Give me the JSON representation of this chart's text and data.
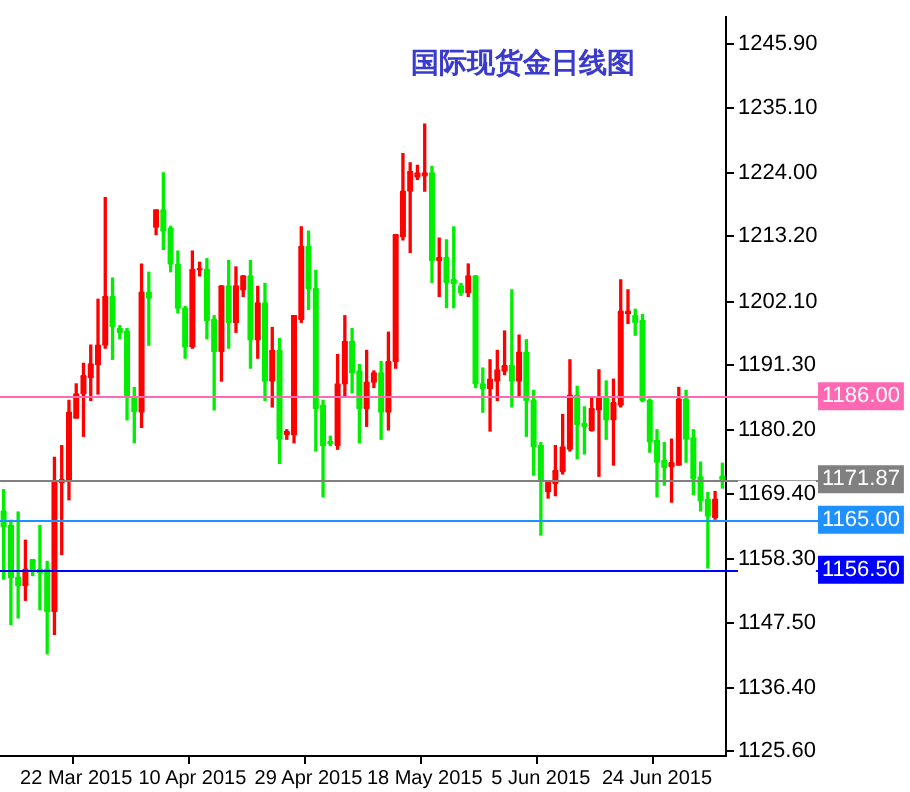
{
  "chart_data": {
    "type": "candlestick",
    "title": "国际现货金日线图",
    "categories": [
      null,
      null,
      null,
      null,
      null,
      null,
      null,
      null,
      null,
      null,
      "22 Mar 2015",
      null,
      null,
      null,
      null,
      null,
      null,
      null,
      null,
      null,
      null,
      null,
      null,
      null,
      null,
      null,
      "10 Apr 2015",
      null,
      null,
      null,
      null,
      null,
      null,
      null,
      null,
      null,
      null,
      null,
      null,
      null,
      null,
      null,
      "29 Apr 2015",
      null,
      null,
      null,
      null,
      null,
      null,
      null,
      null,
      null,
      null,
      null,
      null,
      null,
      null,
      null,
      "18 May 2015",
      null,
      null,
      null,
      null,
      null,
      null,
      null,
      null,
      null,
      null,
      null,
      null,
      null,
      null,
      null,
      "5 Jun 2015",
      null,
      null,
      null,
      null,
      null,
      null,
      null,
      null,
      null,
      null,
      null,
      null,
      null,
      null,
      null,
      "24 Jun 2015",
      null,
      null,
      null,
      null,
      null,
      null,
      null,
      null,
      null
    ],
    "ohlc": [
      [
        1166.5,
        1170.1,
        1154.9,
        1163.8
      ],
      [
        1164.0,
        1164.9,
        1147.2,
        1155.2
      ],
      [
        1155.2,
        1166.3,
        1148.3,
        1153.8
      ],
      [
        1153.8,
        1161.5,
        1151.3,
        1156.6
      ],
      [
        1158.2,
        1158.2,
        1155.5,
        1156.3
      ],
      [
        1156.6,
        1164.0,
        1149.7,
        1156.0
      ],
      [
        1156.6,
        1157.9,
        1142.2,
        1149.4
      ],
      [
        1149.4,
        1175.6,
        1145.5,
        1171.7
      ],
      [
        1171.3,
        1177.6,
        1159.1,
        1171.8
      ],
      [
        1171.8,
        1185.3,
        1168.4,
        1183.3
      ],
      [
        1182.3,
        1188.1,
        1182.3,
        1186.4
      ],
      [
        1186.4,
        1191.6,
        1179.2,
        1189.5
      ],
      [
        1189.2,
        1194.7,
        1185.3,
        1191.5
      ],
      [
        1191.4,
        1202.5,
        1186.4,
        1194.7
      ],
      [
        1194.7,
        1219.8,
        1194.2,
        1203.0
      ],
      [
        1203.0,
        1206.1,
        1192.3,
        1197.9
      ],
      [
        1197.5,
        1198.0,
        1195.8,
        1196.9
      ],
      [
        1197.1,
        1197.5,
        1182.0,
        1185.9
      ],
      [
        1185.9,
        1187.5,
        1178.1,
        1183.4
      ],
      [
        1183.3,
        1208.5,
        1180.7,
        1203.7
      ],
      [
        1203.7,
        1207.1,
        1194.7,
        1202.7
      ],
      [
        1214.8,
        1217.7,
        1213.5,
        1217.7
      ],
      [
        1217.7,
        1224.0,
        1211.0,
        1214.1
      ],
      [
        1214.6,
        1214.9,
        1207.2,
        1208.5
      ],
      [
        1208.5,
        1210.7,
        1200.2,
        1201.0
      ],
      [
        1201.0,
        1201.3,
        1192.5,
        1194.4
      ],
      [
        1194.4,
        1210.7,
        1194.2,
        1207.6
      ],
      [
        1207.5,
        1208.8,
        1206.5,
        1207.7
      ],
      [
        1207.6,
        1209.4,
        1195.8,
        1198.9
      ],
      [
        1199.1,
        1199.7,
        1183.7,
        1193.6
      ],
      [
        1193.6,
        1204.8,
        1188.6,
        1204.8
      ],
      [
        1204.8,
        1209.1,
        1194.2,
        1198.6
      ],
      [
        1198.6,
        1208.0,
        1196.9,
        1204.8
      ],
      [
        1204.1,
        1206.5,
        1203.0,
        1206.5
      ],
      [
        1206.5,
        1209.1,
        1190.8,
        1195.6
      ],
      [
        1195.6,
        1204.7,
        1192.5,
        1201.9
      ],
      [
        1201.9,
        1205.2,
        1185.3,
        1188.6
      ],
      [
        1188.6,
        1197.7,
        1184.2,
        1193.8
      ],
      [
        1193.8,
        1195.8,
        1174.6,
        1178.7
      ],
      [
        1179.5,
        1180.3,
        1178.7,
        1180.0
      ],
      [
        1179.5,
        1199.7,
        1178.1,
        1199.7
      ],
      [
        1199.1,
        1214.8,
        1198.6,
        1211.5
      ],
      [
        1211.5,
        1214.1,
        1200.8,
        1204.3
      ],
      [
        1204.3,
        1207.4,
        1176.7,
        1183.9
      ],
      [
        1184.4,
        1185.3,
        1168.9,
        1177.6
      ],
      [
        1178.3,
        1179.2,
        1177.6,
        1177.9
      ],
      [
        1177.6,
        1193.1,
        1177.0,
        1188.1
      ],
      [
        1188.1,
        1199.7,
        1186.1,
        1195.3
      ],
      [
        1195.3,
        1197.5,
        1186.6,
        1190.0
      ],
      [
        1190.3,
        1191.4,
        1178.1,
        1183.9
      ],
      [
        1183.9,
        1193.8,
        1180.9,
        1188.4
      ],
      [
        1188.4,
        1190.3,
        1187.5,
        1190.0
      ],
      [
        1190.0,
        1191.9,
        1178.7,
        1183.3
      ],
      [
        1183.3,
        1196.9,
        1180.3,
        1191.9
      ],
      [
        1191.9,
        1213.5,
        1190.8,
        1213.5
      ],
      [
        1213.2,
        1227.3,
        1212.6,
        1220.9
      ],
      [
        1220.9,
        1225.7,
        1210.5,
        1224.2
      ],
      [
        1223.3,
        1225.3,
        1222.9,
        1224.0
      ],
      [
        1223.5,
        1232.3,
        1220.9,
        1224.0
      ],
      [
        1224.0,
        1225.1,
        1205.4,
        1209.1
      ],
      [
        1209.1,
        1212.9,
        1203.0,
        1209.6
      ],
      [
        1209.6,
        1212.6,
        1201.1,
        1205.4
      ],
      [
        1205.9,
        1214.8,
        1201.1,
        1205.2
      ],
      [
        1204.8,
        1205.2,
        1203.2,
        1203.6
      ],
      [
        1203.6,
        1208.5,
        1203.0,
        1206.5
      ],
      [
        1206.5,
        1206.5,
        1187.5,
        1188.1
      ],
      [
        1188.1,
        1190.8,
        1183.3,
        1187.3
      ],
      [
        1187.3,
        1192.2,
        1180.1,
        1188.9
      ],
      [
        1188.6,
        1193.8,
        1185.3,
        1190.5
      ],
      [
        1190.3,
        1197.1,
        1189.7,
        1191.2
      ],
      [
        1191.2,
        1204.1,
        1184.2,
        1188.6
      ],
      [
        1188.6,
        1196.4,
        1185.9,
        1193.5
      ],
      [
        1193.5,
        1195.6,
        1179.2,
        1185.3
      ],
      [
        1185.3,
        1187.0,
        1172.6,
        1177.4
      ],
      [
        1177.6,
        1178.1,
        1162.4,
        1171.8
      ],
      [
        1169.8,
        1171.5,
        1168.7,
        1171.3
      ],
      [
        1171.2,
        1177.6,
        1169.1,
        1173.4
      ],
      [
        1173.2,
        1182.9,
        1172.8,
        1177.4
      ],
      [
        1177.0,
        1192.2,
        1176.7,
        1186.2
      ],
      [
        1186.2,
        1187.7,
        1175.4,
        1181.2
      ],
      [
        1181.4,
        1184.2,
        1176.2,
        1180.9
      ],
      [
        1180.2,
        1185.9,
        1180.1,
        1183.9
      ],
      [
        1183.7,
        1190.5,
        1172.4,
        1185.9
      ],
      [
        1185.9,
        1188.6,
        1178.7,
        1182.0
      ],
      [
        1182.0,
        1188.9,
        1174.3,
        1184.9
      ],
      [
        1184.5,
        1205.8,
        1184.2,
        1200.5
      ],
      [
        1200.1,
        1204.1,
        1198.4,
        1200.5
      ],
      [
        1199.7,
        1200.8,
        1196.4,
        1198.6
      ],
      [
        1198.9,
        1199.9,
        1185.1,
        1185.3
      ],
      [
        1185.3,
        1185.5,
        1176.5,
        1178.3
      ],
      [
        1178.5,
        1180.3,
        1168.9,
        1174.8
      ],
      [
        1175.1,
        1178.1,
        1170.9,
        1173.9
      ],
      [
        1174.0,
        1178.7,
        1168.0,
        1174.7
      ],
      [
        1174.3,
        1187.5,
        1174.3,
        1185.5
      ],
      [
        1185.5,
        1187.0,
        1174.8,
        1178.7
      ],
      [
        1178.9,
        1180.3,
        1169.3,
        1172.0
      ],
      [
        1172.3,
        1174.8,
        1166.5,
        1168.2
      ],
      [
        1168.4,
        1169.6,
        1156.8,
        1165.6
      ],
      [
        1165.4,
        1169.8,
        1165.1,
        1168.5
      ],
      [
        1172.4,
        1174.6,
        1170.4,
        1171.87
      ]
    ],
    "ylim": [
      1124.8,
      1250.5
    ],
    "yticks": [
      {
        "value": 1245.9,
        "label": "1245.90"
      },
      {
        "value": 1235.1,
        "label": "1235.10"
      },
      {
        "value": 1224.0,
        "label": "1224.00"
      },
      {
        "value": 1213.2,
        "label": "1213.20"
      },
      {
        "value": 1202.1,
        "label": "1202.10"
      },
      {
        "value": 1191.3,
        "label": "1191.30"
      },
      {
        "value": 1180.2,
        "label": "1180.20"
      },
      {
        "value": 1169.4,
        "label": "1169.40"
      },
      {
        "value": 1158.3,
        "label": "1158.30"
      },
      {
        "value": 1147.5,
        "label": "1147.50"
      },
      {
        "value": 1136.4,
        "label": "1136.40"
      },
      {
        "value": 1125.6,
        "label": "1125.60"
      }
    ],
    "ref_lines": [
      {
        "axis": "y",
        "value": 1186.0,
        "label": "1186.00",
        "color": "#ff69b4"
      },
      {
        "axis": "y",
        "value": 1171.87,
        "label": "1171.87",
        "color": "#808080"
      },
      {
        "axis": "y",
        "value": 1165.0,
        "label": "1165.00",
        "color": "#1e90ff"
      },
      {
        "axis": "y",
        "value": 1156.5,
        "label": "1156.50",
        "color": "#0000ff"
      }
    ]
  }
}
